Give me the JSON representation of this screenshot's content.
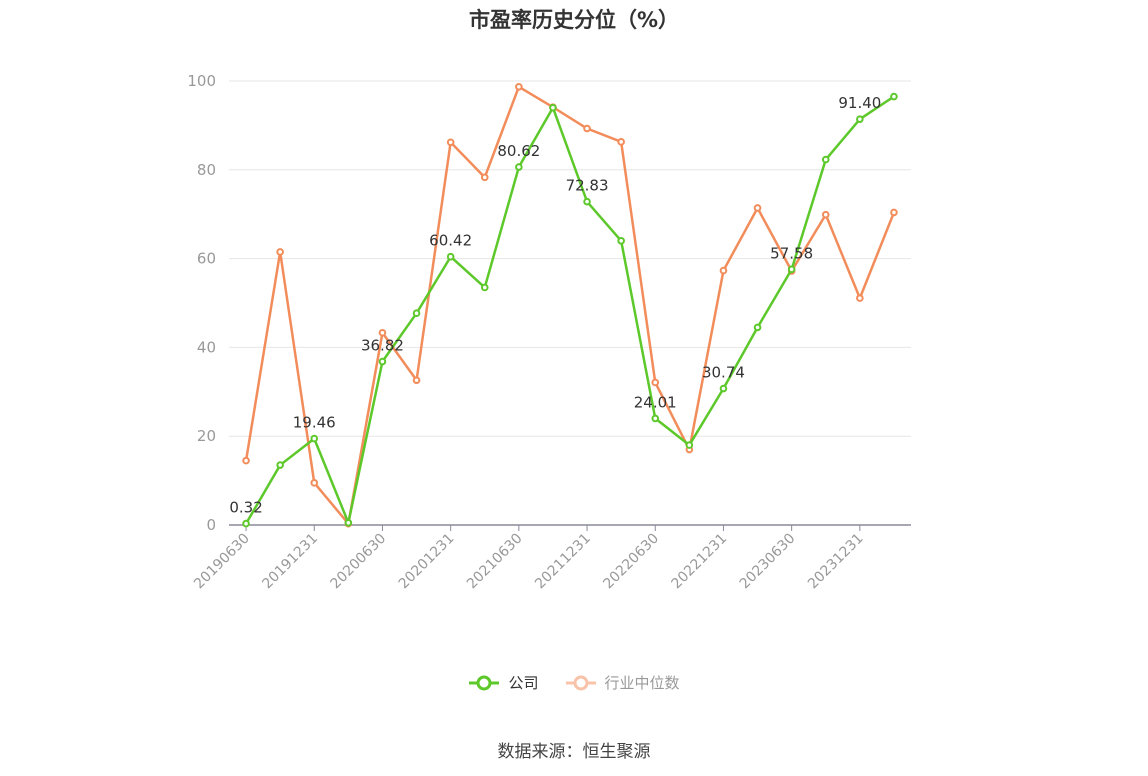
{
  "title": "市盈率历史分位（%）",
  "source": "数据来源：恒生聚源",
  "chart_data": {
    "type": "line",
    "x": [
      "20190630",
      "20190930",
      "20191231",
      "20200331",
      "20200630",
      "20200930",
      "20201231",
      "20210331",
      "20210630",
      "20210930",
      "20211231",
      "20220331",
      "20220630",
      "20220930",
      "20221231",
      "20230331",
      "20230630",
      "20230930",
      "20231231",
      "20240331"
    ],
    "x_tick_labels": [
      "20190630",
      "20191231",
      "20200630",
      "20201231",
      "20210630",
      "20211231",
      "20220630",
      "20221231",
      "20230630",
      "20231231"
    ],
    "ylim": [
      0,
      100
    ],
    "y_ticks": [
      0,
      20,
      40,
      60,
      80,
      100
    ],
    "grid": true,
    "legend_position": "bottom",
    "series": [
      {
        "name": "公司",
        "color": "#5cc82a",
        "values": [
          0.32,
          13.5,
          19.46,
          0.5,
          36.82,
          47.7,
          60.42,
          53.5,
          80.62,
          94.0,
          72.83,
          64.0,
          24.01,
          18.0,
          30.74,
          44.5,
          57.58,
          82.3,
          91.4,
          96.5
        ],
        "labeled_indices": [
          0,
          2,
          4,
          6,
          8,
          10,
          12,
          14,
          16,
          18
        ]
      },
      {
        "name": "行业中位数",
        "color": "#f28c5a",
        "values": [
          14.5,
          61.5,
          9.5,
          0.3,
          43.3,
          32.6,
          86.2,
          78.3,
          98.7,
          94.1,
          89.3,
          86.3,
          32.1,
          17.0,
          57.3,
          71.4,
          57.2,
          69.9,
          51.1,
          70.4
        ]
      }
    ]
  }
}
